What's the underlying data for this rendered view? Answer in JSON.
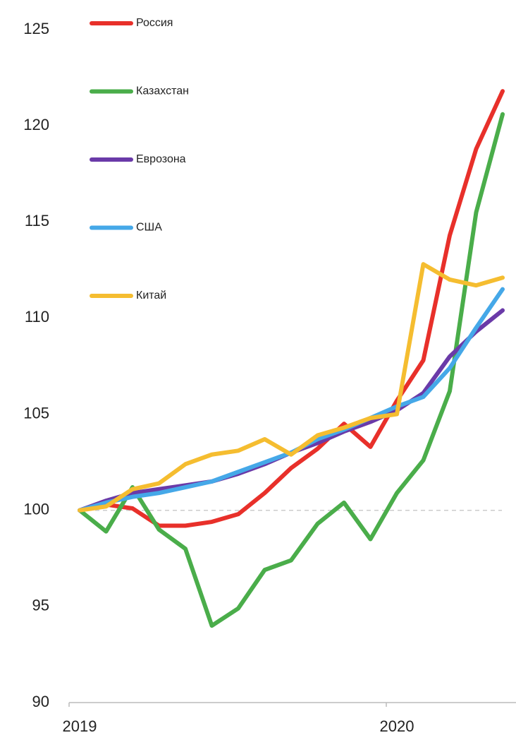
{
  "chart_data": {
    "type": "line",
    "categories": [
      "2019",
      null,
      null,
      null,
      null,
      null,
      null,
      null,
      null,
      null,
      null,
      null,
      "2020",
      null,
      null,
      null,
      null
    ],
    "series": [
      {
        "name": "Россия",
        "color": "#e8302a",
        "values": [
          100,
          100.3,
          100.1,
          99.2,
          99.2,
          99.4,
          99.8,
          100.9,
          102.2,
          103.2,
          104.5,
          103.3,
          105.7,
          107.8,
          114.3,
          118.8,
          121.8
        ]
      },
      {
        "name": "Казахстан",
        "color": "#4aad4a",
        "values": [
          100,
          98.9,
          101.2,
          99.0,
          98.0,
          94.0,
          94.9,
          96.9,
          97.4,
          99.3,
          100.4,
          98.5,
          100.9,
          102.6,
          106.2,
          115.5,
          120.6
        ]
      },
      {
        "name": "Еврозона",
        "color": "#6a3aa8",
        "values": [
          100,
          100.5,
          100.9,
          101.1,
          101.3,
          101.5,
          101.9,
          102.4,
          103.0,
          103.5,
          104.1,
          104.6,
          105.2,
          106.1,
          108.0,
          109.3,
          110.4
        ]
      },
      {
        "name": "США",
        "color": "#45a8e8",
        "values": [
          100,
          100.4,
          100.7,
          100.9,
          101.2,
          101.5,
          102.0,
          102.5,
          103.0,
          103.7,
          104.2,
          104.8,
          105.4,
          105.9,
          107.4,
          109.5,
          111.5
        ]
      },
      {
        "name": "Китай",
        "color": "#f5bd30",
        "values": [
          100,
          100.2,
          101.1,
          101.4,
          102.4,
          102.9,
          103.1,
          103.7,
          102.9,
          103.9,
          104.3,
          104.8,
          105.0,
          112.8,
          112.0,
          111.7,
          112.1
        ]
      }
    ],
    "ylim": [
      90,
      125
    ],
    "yticks": [
      90,
      95,
      100,
      105,
      110,
      115,
      120,
      125
    ],
    "reference_line": 100,
    "legend": "top-left",
    "grid": false
  }
}
